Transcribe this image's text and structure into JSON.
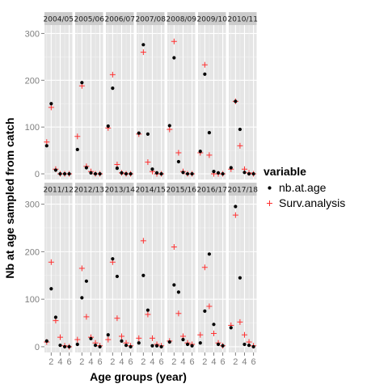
{
  "chart_data": {
    "type": "scatter",
    "facet_layout": {
      "ncol": 7,
      "nrow": 2
    },
    "xlabel": "Age groups (year)",
    "ylabel": "Nb at age sampled from catch",
    "xlim": [
      0.5,
      6.7
    ],
    "ylim": [
      -12,
      318
    ],
    "x_ticks": [
      2,
      4,
      6
    ],
    "y_ticks": [
      0,
      100,
      200,
      300
    ],
    "grid": true,
    "legend": {
      "title": "variable",
      "position": "right",
      "entries": [
        {
          "label": "nb.at.age",
          "shape": "dot",
          "color": "#000000"
        },
        {
          "label": "Surv.analysis",
          "shape": "plus",
          "color": "#ff3030"
        }
      ]
    },
    "series_names": [
      "nb.at.age",
      "Surv.analysis"
    ],
    "panels": [
      {
        "label": "2004/05",
        "x": [
          1,
          2,
          3,
          4,
          5,
          6
        ],
        "nb_at_age": [
          60,
          150,
          8,
          0,
          0,
          0
        ],
        "surv_analysis": [
          68,
          142,
          10,
          0,
          0,
          0
        ]
      },
      {
        "label": "2005/06",
        "x": [
          1,
          2,
          3,
          4,
          5,
          6
        ],
        "nb_at_age": [
          52,
          195,
          13,
          2,
          0,
          0
        ],
        "surv_analysis": [
          80,
          188,
          16,
          5,
          0,
          0
        ]
      },
      {
        "label": "2006/07",
        "x": [
          1,
          2,
          3,
          4,
          5,
          6
        ],
        "nb_at_age": [
          102,
          183,
          12,
          2,
          0,
          0
        ],
        "surv_analysis": [
          98,
          212,
          20,
          2,
          0,
          0
        ]
      },
      {
        "label": "2007/08",
        "x": [
          1,
          2,
          3,
          4,
          5,
          6
        ],
        "nb_at_age": [
          87,
          276,
          85,
          10,
          2,
          0
        ],
        "surv_analysis": [
          85,
          260,
          25,
          5,
          0,
          0
        ]
      },
      {
        "label": "2008/09",
        "x": [
          1,
          2,
          3,
          4,
          5,
          6
        ],
        "nb_at_age": [
          103,
          248,
          26,
          3,
          0,
          0
        ],
        "surv_analysis": [
          95,
          283,
          45,
          5,
          0,
          0
        ]
      },
      {
        "label": "2009/10",
        "x": [
          1,
          2,
          3,
          4,
          5,
          6
        ],
        "nb_at_age": [
          48,
          213,
          88,
          5,
          2,
          0
        ],
        "surv_analysis": [
          45,
          233,
          40,
          0,
          0,
          0
        ]
      },
      {
        "label": "2010/11",
        "x": [
          1,
          2,
          3,
          4,
          5,
          6
        ],
        "nb_at_age": [
          13,
          155,
          95,
          3,
          0,
          0
        ],
        "surv_analysis": [
          10,
          155,
          60,
          10,
          2,
          0
        ]
      },
      {
        "label": "2011/12",
        "x": [
          1,
          2,
          3,
          4,
          5,
          6
        ],
        "nb_at_age": [
          12,
          122,
          62,
          3,
          0,
          0
        ],
        "surv_analysis": [
          10,
          178,
          55,
          20,
          2,
          0
        ]
      },
      {
        "label": "2012/13",
        "x": [
          1,
          2,
          3,
          4,
          5,
          6
        ],
        "nb_at_age": [
          5,
          103,
          138,
          17,
          3,
          0
        ],
        "surv_analysis": [
          15,
          165,
          63,
          20,
          8,
          2
        ]
      },
      {
        "label": "2013/14",
        "x": [
          1,
          2,
          3,
          4,
          5,
          6
        ],
        "nb_at_age": [
          25,
          185,
          148,
          12,
          3,
          0
        ],
        "surv_analysis": [
          15,
          178,
          60,
          22,
          8,
          2
        ]
      },
      {
        "label": "2014/15",
        "x": [
          1,
          2,
          3,
          4,
          5,
          6
        ],
        "nb_at_age": [
          8,
          150,
          77,
          2,
          2,
          0
        ],
        "surv_analysis": [
          18,
          223,
          68,
          18,
          5,
          2
        ]
      },
      {
        "label": "2015/16",
        "x": [
          1,
          2,
          3,
          4,
          5,
          6
        ],
        "nb_at_age": [
          10,
          130,
          115,
          15,
          5,
          2
        ],
        "surv_analysis": [
          12,
          210,
          70,
          22,
          8,
          5
        ]
      },
      {
        "label": "2016/17",
        "x": [
          1,
          2,
          3,
          4,
          5,
          6
        ],
        "nb_at_age": [
          8,
          75,
          195,
          47,
          5,
          2
        ],
        "surv_analysis": [
          25,
          167,
          85,
          28,
          8,
          2
        ]
      },
      {
        "label": "2017/18",
        "x": [
          1,
          2,
          3,
          4,
          5,
          6
        ],
        "nb_at_age": [
          40,
          295,
          145,
          5,
          3,
          0
        ],
        "surv_analysis": [
          45,
          277,
          52,
          25,
          10,
          2
        ]
      }
    ]
  },
  "colors": {
    "panel_bg": "#e5e5e5",
    "strip_bg": "#cccccc",
    "grid_major": "#ffffff",
    "grid_minor": "#f2f2f2",
    "dot": "#000000",
    "plus": "#ff3030"
  }
}
